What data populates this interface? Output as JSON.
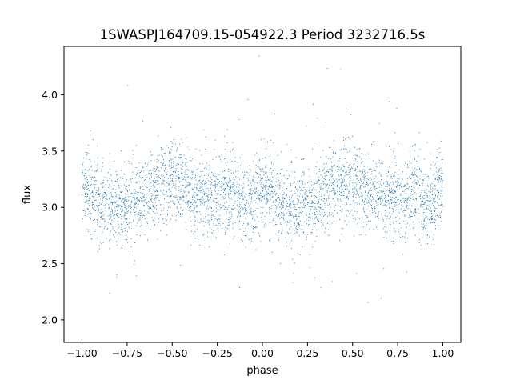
{
  "chart_data": {
    "type": "scatter",
    "title": "1SWASPJ164709.15-054922.3 Period 3232716.5s",
    "xlabel": "phase",
    "ylabel": "flux",
    "xlim": [
      -1.1,
      1.1
    ],
    "ylim": [
      1.8,
      4.43
    ],
    "xticks": [
      -1.0,
      -0.75,
      -0.5,
      -0.25,
      0.0,
      0.25,
      0.5,
      0.75,
      1.0
    ],
    "xtick_labels": [
      "−1.00",
      "−0.75",
      "−0.50",
      "−0.25",
      "0.00",
      "0.25",
      "0.50",
      "0.75",
      "1.00"
    ],
    "yticks": [
      2.0,
      2.5,
      3.0,
      3.5,
      4.0
    ],
    "ytick_labels": [
      "2.0",
      "2.5",
      "3.0",
      "3.5",
      "4.0"
    ],
    "marker_color": "#1f77b4",
    "grid": false,
    "phase_range": [
      -1.0,
      1.0
    ],
    "series": [
      {
        "name": "",
        "profile": [
          [
            0.0,
            3.21
          ],
          [
            0.05,
            3.12
          ],
          [
            0.1,
            3.02
          ],
          [
            0.15,
            3.0
          ],
          [
            0.2,
            2.98
          ],
          [
            0.25,
            3.02
          ],
          [
            0.3,
            3.07
          ],
          [
            0.35,
            3.12
          ],
          [
            0.4,
            3.18
          ],
          [
            0.45,
            3.22
          ],
          [
            0.5,
            3.25
          ],
          [
            0.55,
            3.2
          ],
          [
            0.6,
            3.13
          ],
          [
            0.65,
            3.1
          ],
          [
            0.7,
            3.08
          ],
          [
            0.75,
            3.09
          ],
          [
            0.8,
            3.12
          ],
          [
            0.85,
            3.13
          ],
          [
            0.9,
            3.0
          ],
          [
            0.95,
            3.05
          ],
          [
            1.0,
            3.21
          ]
        ]
      }
    ]
  }
}
